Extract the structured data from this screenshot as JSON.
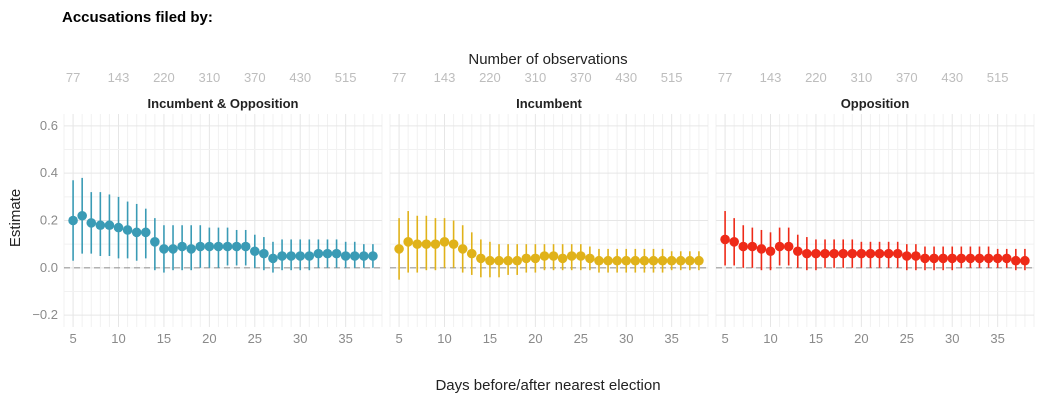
{
  "chart_data": {
    "type": "scatter",
    "title": "Accusations filed by:",
    "top_axis_title": "Number of observations",
    "top_axis_ticks": [
      "77",
      "143",
      "220",
      "310",
      "370",
      "430",
      "515"
    ],
    "xlabel": "Days before/after nearest election",
    "ylabel": "Estimate",
    "xlim": [
      4,
      39
    ],
    "ylim": [
      -0.25,
      0.65
    ],
    "x_ticks": [
      5,
      10,
      15,
      20,
      25,
      30,
      35
    ],
    "y_ticks": [
      -0.2,
      0.0,
      0.2,
      0.4,
      0.6
    ],
    "y_tick_labels": [
      "−0.2",
      "0.0",
      "0.2",
      "0.4",
      "0.6"
    ],
    "reference_line": 0.0,
    "grid": true,
    "x": [
      5,
      6,
      7,
      8,
      9,
      10,
      11,
      12,
      13,
      14,
      15,
      16,
      17,
      18,
      19,
      20,
      21,
      22,
      23,
      24,
      25,
      26,
      27,
      28,
      29,
      30,
      31,
      32,
      33,
      34,
      35,
      36,
      37,
      38
    ],
    "panels": [
      {
        "name": "Incumbent & Opposition",
        "color": "#3a9bb5",
        "estimates": [
          0.2,
          0.22,
          0.19,
          0.18,
          0.18,
          0.17,
          0.16,
          0.15,
          0.15,
          0.11,
          0.08,
          0.08,
          0.09,
          0.08,
          0.09,
          0.09,
          0.09,
          0.09,
          0.09,
          0.09,
          0.07,
          0.06,
          0.04,
          0.05,
          0.05,
          0.05,
          0.05,
          0.06,
          0.06,
          0.06,
          0.05,
          0.05,
          0.05,
          0.05
        ],
        "lower": [
          0.03,
          0.06,
          0.06,
          0.05,
          0.05,
          0.04,
          0.04,
          0.03,
          0.04,
          -0.01,
          -0.02,
          -0.01,
          -0.01,
          -0.01,
          0.0,
          0.0,
          0.0,
          0.01,
          0.01,
          0.01,
          0.0,
          -0.01,
          -0.02,
          -0.01,
          -0.01,
          -0.01,
          -0.01,
          0.0,
          0.0,
          0.0,
          0.0,
          0.0,
          0.0,
          0.0
        ],
        "upper": [
          0.37,
          0.38,
          0.32,
          0.32,
          0.31,
          0.3,
          0.28,
          0.27,
          0.25,
          0.21,
          0.18,
          0.18,
          0.18,
          0.18,
          0.18,
          0.17,
          0.17,
          0.17,
          0.16,
          0.16,
          0.14,
          0.13,
          0.11,
          0.12,
          0.12,
          0.12,
          0.12,
          0.12,
          0.12,
          0.12,
          0.11,
          0.11,
          0.1,
          0.1
        ]
      },
      {
        "name": "Incumbent",
        "color": "#e0b21a",
        "estimates": [
          0.08,
          0.11,
          0.1,
          0.1,
          0.1,
          0.11,
          0.1,
          0.08,
          0.06,
          0.04,
          0.03,
          0.03,
          0.03,
          0.03,
          0.04,
          0.04,
          0.05,
          0.05,
          0.04,
          0.05,
          0.05,
          0.04,
          0.03,
          0.03,
          0.03,
          0.03,
          0.03,
          0.03,
          0.03,
          0.03,
          0.03,
          0.03,
          0.03,
          0.03
        ],
        "lower": [
          -0.05,
          -0.02,
          -0.02,
          -0.01,
          -0.01,
          0.0,
          0.0,
          -0.02,
          -0.03,
          -0.04,
          -0.04,
          -0.04,
          -0.03,
          -0.03,
          -0.02,
          -0.02,
          -0.01,
          -0.01,
          -0.01,
          -0.01,
          -0.01,
          -0.01,
          -0.02,
          -0.02,
          -0.02,
          -0.02,
          -0.02,
          -0.02,
          -0.02,
          -0.02,
          -0.01,
          -0.01,
          -0.01,
          -0.01
        ],
        "upper": [
          0.21,
          0.24,
          0.22,
          0.22,
          0.21,
          0.21,
          0.2,
          0.18,
          0.15,
          0.12,
          0.11,
          0.1,
          0.1,
          0.1,
          0.1,
          0.1,
          0.1,
          0.1,
          0.1,
          0.1,
          0.1,
          0.09,
          0.08,
          0.08,
          0.08,
          0.08,
          0.08,
          0.08,
          0.08,
          0.08,
          0.07,
          0.07,
          0.07,
          0.07
        ]
      },
      {
        "name": "Opposition",
        "color": "#ee2a18",
        "estimates": [
          0.12,
          0.11,
          0.09,
          0.09,
          0.08,
          0.07,
          0.09,
          0.09,
          0.07,
          0.06,
          0.06,
          0.06,
          0.06,
          0.06,
          0.06,
          0.06,
          0.06,
          0.06,
          0.06,
          0.06,
          0.05,
          0.05,
          0.04,
          0.04,
          0.04,
          0.04,
          0.04,
          0.04,
          0.04,
          0.04,
          0.04,
          0.04,
          0.03,
          0.03
        ],
        "lower": [
          0.01,
          0.01,
          0.0,
          0.0,
          -0.01,
          -0.01,
          0.01,
          0.01,
          0.0,
          -0.01,
          -0.01,
          0.0,
          0.0,
          0.0,
          0.0,
          0.0,
          0.0,
          0.0,
          0.0,
          0.0,
          -0.01,
          -0.01,
          -0.01,
          -0.01,
          -0.01,
          -0.01,
          0.0,
          0.0,
          0.0,
          0.0,
          0.0,
          0.0,
          -0.01,
          -0.01
        ],
        "upper": [
          0.24,
          0.21,
          0.18,
          0.17,
          0.16,
          0.15,
          0.17,
          0.17,
          0.14,
          0.13,
          0.12,
          0.12,
          0.12,
          0.12,
          0.12,
          0.11,
          0.11,
          0.11,
          0.11,
          0.11,
          0.1,
          0.1,
          0.09,
          0.09,
          0.09,
          0.09,
          0.09,
          0.09,
          0.09,
          0.09,
          0.08,
          0.08,
          0.08,
          0.08
        ]
      }
    ]
  }
}
